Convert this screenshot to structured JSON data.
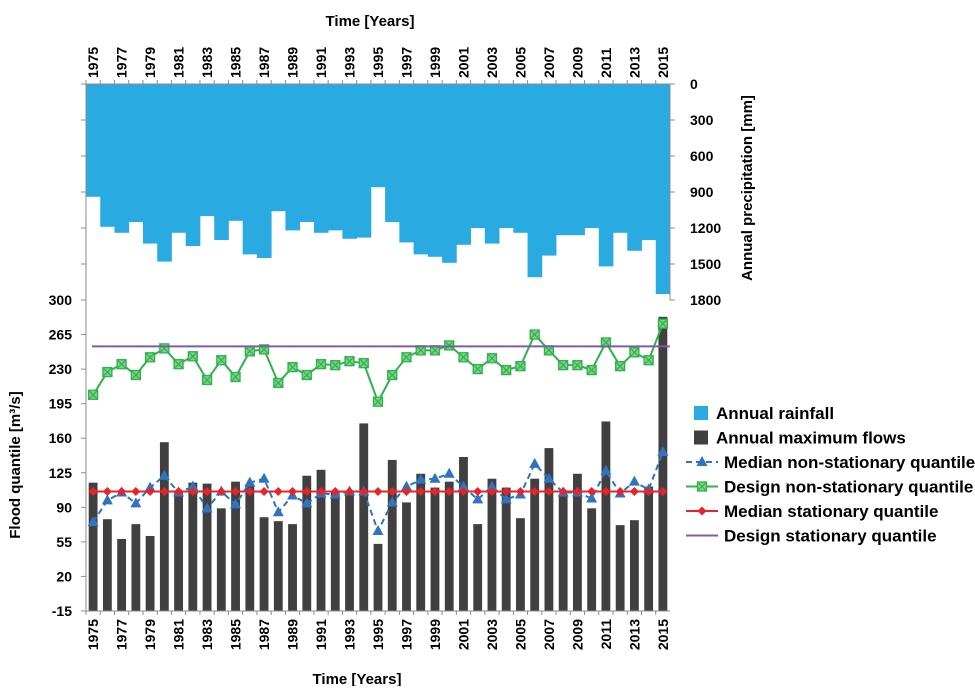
{
  "chart_data": {
    "type": "bar",
    "xlabel_top": "Time [Years]",
    "xlabel_bottom": "Time [Years]",
    "ylabel_left": "Flood quantile [m³/s]",
    "ylabel_right": "Annual precipitation [mm]",
    "years": [
      1975,
      1976,
      1977,
      1978,
      1979,
      1980,
      1981,
      1982,
      1983,
      1984,
      1985,
      1986,
      1987,
      1988,
      1989,
      1990,
      1991,
      1992,
      1993,
      1994,
      1995,
      1996,
      1997,
      1998,
      1999,
      2000,
      2001,
      2002,
      2003,
      2004,
      2005,
      2006,
      2007,
      2008,
      2009,
      2010,
      2011,
      2012,
      2013,
      2014,
      2015
    ],
    "x_tick_labels": [
      "1975",
      "1977",
      "1979",
      "1981",
      "1983",
      "1985",
      "1987",
      "1989",
      "1991",
      "1993",
      "1995",
      "1997",
      "1999",
      "2001",
      "2003",
      "2005",
      "2007",
      "2009",
      "2011",
      "2013",
      "2015"
    ],
    "left_axis": {
      "ylim": [
        -15,
        300
      ],
      "ticks": [
        "300",
        "265",
        "230",
        "195",
        "160",
        "125",
        "90",
        "55",
        "20",
        "-15"
      ]
    },
    "right_axis": {
      "ylim": [
        0,
        1800
      ],
      "inverted": true,
      "ticks": [
        "0",
        "300",
        "600",
        "900",
        "1200",
        "1500",
        "1800"
      ]
    },
    "series": [
      {
        "name": "Annual rainfall",
        "type": "bar",
        "axis": "right",
        "color": "#29abe2",
        "values": [
          940,
          1190,
          1240,
          1150,
          1330,
          1480,
          1240,
          1350,
          1100,
          1300,
          1140,
          1420,
          1450,
          1060,
          1220,
          1150,
          1240,
          1220,
          1290,
          1280,
          860,
          1150,
          1320,
          1420,
          1440,
          1490,
          1340,
          1200,
          1330,
          1200,
          1240,
          1610,
          1430,
          1260,
          1260,
          1200,
          1520,
          1240,
          1390,
          1300,
          1750
        ]
      },
      {
        "name": "Annual maximum flows",
        "type": "bar",
        "axis": "left",
        "color": "#404040",
        "values": [
          115,
          78,
          58,
          73,
          61,
          156,
          105,
          115,
          114,
          89,
          116,
          113,
          80,
          76,
          73,
          122,
          128,
          105,
          106,
          175,
          53,
          138,
          95,
          124,
          110,
          116,
          141,
          73,
          119,
          110,
          79,
          119,
          150,
          101,
          124,
          89,
          177,
          72,
          77,
          111,
          283
        ]
      },
      {
        "name": "Median non-stationary quantile",
        "type": "line",
        "axis": "left",
        "color": "#2e74c0",
        "marker": "triangle",
        "values": [
          75,
          97,
          105,
          94,
          110,
          122,
          105,
          111,
          89,
          106,
          93,
          115,
          119,
          85,
          102,
          94,
          104,
          103,
          106,
          106,
          66,
          95,
          111,
          118,
          119,
          124,
          111,
          98,
          111,
          98,
          103,
          134,
          119,
          105,
          105,
          99,
          127,
          104,
          116,
          108,
          146
        ]
      },
      {
        "name": "Design non-stationary quantile",
        "type": "line",
        "axis": "left",
        "color": "#2eb34a",
        "marker": "square-x",
        "values": [
          204,
          227,
          235,
          224,
          242,
          251,
          235,
          243,
          219,
          239,
          222,
          248,
          250,
          216,
          232,
          224,
          235,
          234,
          238,
          236,
          197,
          224,
          242,
          249,
          249,
          254,
          242,
          230,
          241,
          229,
          233,
          265,
          249,
          234,
          234,
          229,
          257,
          233,
          247,
          239,
          276
        ]
      },
      {
        "name": "Median stationary quantile",
        "type": "line",
        "axis": "left",
        "color": "#e8232a",
        "marker": "diamond",
        "values": [
          106,
          106,
          106,
          106,
          106,
          106,
          106,
          106,
          106,
          106,
          106,
          106,
          106,
          106,
          106,
          106,
          106,
          106,
          106,
          106,
          106,
          106,
          106,
          106,
          106,
          106,
          106,
          106,
          106,
          106,
          106,
          106,
          106,
          106,
          106,
          106,
          106,
          106,
          106,
          106,
          106
        ]
      },
      {
        "name": "Design stationary quantile",
        "type": "line",
        "axis": "left",
        "color": "#7b5ea7",
        "marker": "none",
        "values": [
          253,
          253,
          253,
          253,
          253,
          253,
          253,
          253,
          253,
          253,
          253,
          253,
          253,
          253,
          253,
          253,
          253,
          253,
          253,
          253,
          253,
          253,
          253,
          253,
          253,
          253,
          253,
          253,
          253,
          253,
          253,
          253,
          253,
          253,
          253,
          253,
          253,
          253,
          253,
          253,
          253
        ]
      }
    ],
    "legend_position": "right",
    "grid": false
  }
}
